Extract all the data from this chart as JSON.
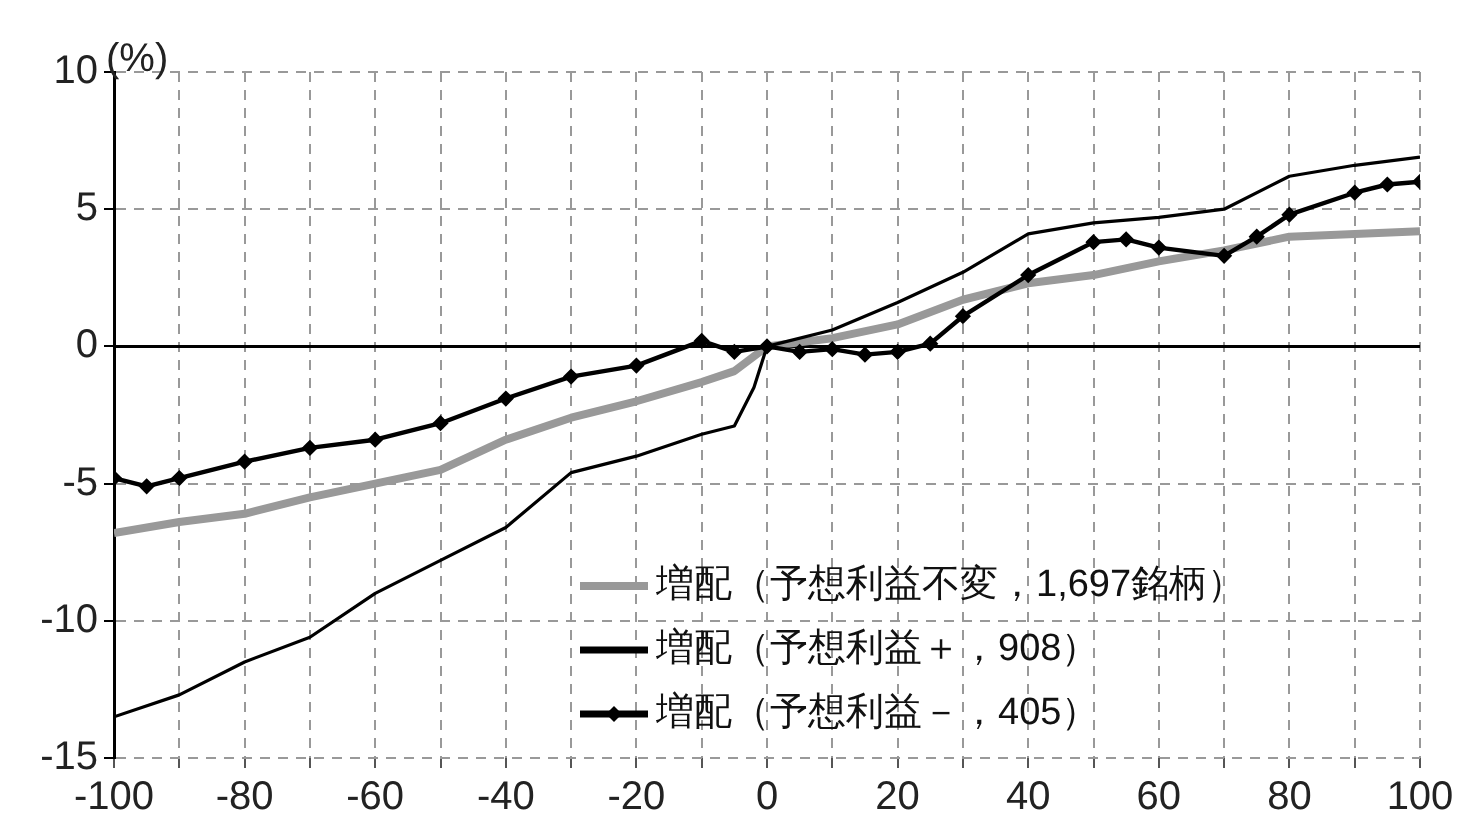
{
  "chart_data": {
    "type": "line",
    "ylabel": "(%)",
    "xlim": [
      -100,
      100
    ],
    "xticks": [
      -100,
      {
        "value": -90,
        "label": null
      },
      -80,
      {
        "value": -70,
        "label": null
      },
      -60,
      {
        "value": -50,
        "label": null
      },
      -40,
      {
        "value": -30,
        "label": null
      },
      -20,
      {
        "value": -10,
        "label": null
      },
      0,
      {
        "value": 10,
        "label": null
      },
      20,
      {
        "value": 30,
        "label": null
      },
      40,
      {
        "value": 50,
        "label": null
      },
      60,
      {
        "value": 70,
        "label": null
      },
      80,
      {
        "value": 90,
        "label": null
      },
      100
    ],
    "ylim": [
      -15,
      10
    ],
    "yticks": [
      -15,
      -10,
      -5,
      0,
      5,
      10
    ],
    "grid": true,
    "legend": "bottom right",
    "ref_lines": [
      {
        "axis": "y",
        "value": 0,
        "color": "#000000",
        "line_style": "solid"
      }
    ],
    "series": [
      {
        "name": "増配（予想利益不変，1,697銘柄）",
        "color": "#999999",
        "marker": "none",
        "x": [
          -100,
          -90,
          -80,
          -70,
          -60,
          -50,
          -40,
          -30,
          -20,
          -10,
          -5,
          0,
          10,
          20,
          30,
          40,
          50,
          60,
          70,
          80,
          90,
          100
        ],
        "values": [
          -6.8,
          -6.4,
          -6.1,
          -5.5,
          -5.0,
          -4.5,
          -3.4,
          -2.6,
          -2.0,
          -1.3,
          -0.9,
          0,
          0.3,
          0.8,
          1.7,
          2.3,
          2.6,
          3.1,
          3.5,
          4.0,
          4.1,
          4.2
        ]
      },
      {
        "name": "増配（予想利益＋，908）",
        "color": "#000000",
        "marker": "none",
        "x": [
          -100,
          -90,
          -80,
          -70,
          -60,
          -50,
          -40,
          -30,
          -20,
          -10,
          -5,
          -2,
          0,
          10,
          20,
          30,
          40,
          50,
          60,
          70,
          80,
          90,
          100
        ],
        "values": [
          -13.5,
          -12.7,
          -11.5,
          -10.6,
          -9.0,
          -7.8,
          -6.6,
          -4.6,
          -4.0,
          -3.2,
          -2.9,
          -1.5,
          0,
          0.6,
          1.6,
          2.7,
          4.1,
          4.5,
          4.7,
          5.0,
          6.2,
          6.6,
          6.9
        ]
      },
      {
        "name": "増配（予想利益－，405）",
        "color": "#000000",
        "marker": "diamond",
        "x": [
          -100,
          -95,
          -90,
          -80,
          -70,
          -60,
          -50,
          -40,
          -30,
          -20,
          -10,
          -5,
          0,
          5,
          10,
          15,
          20,
          25,
          30,
          40,
          50,
          55,
          60,
          70,
          75,
          80,
          90,
          95,
          100
        ],
        "values": [
          -4.8,
          -5.1,
          -4.8,
          -4.2,
          -3.7,
          -3.4,
          -2.8,
          -1.9,
          -1.1,
          -0.7,
          0.2,
          -0.2,
          0,
          -0.2,
          -0.1,
          -0.3,
          -0.2,
          0.1,
          1.1,
          2.6,
          3.8,
          3.9,
          3.6,
          3.3,
          4.0,
          4.8,
          5.6,
          5.9,
          6.0
        ]
      }
    ]
  }
}
